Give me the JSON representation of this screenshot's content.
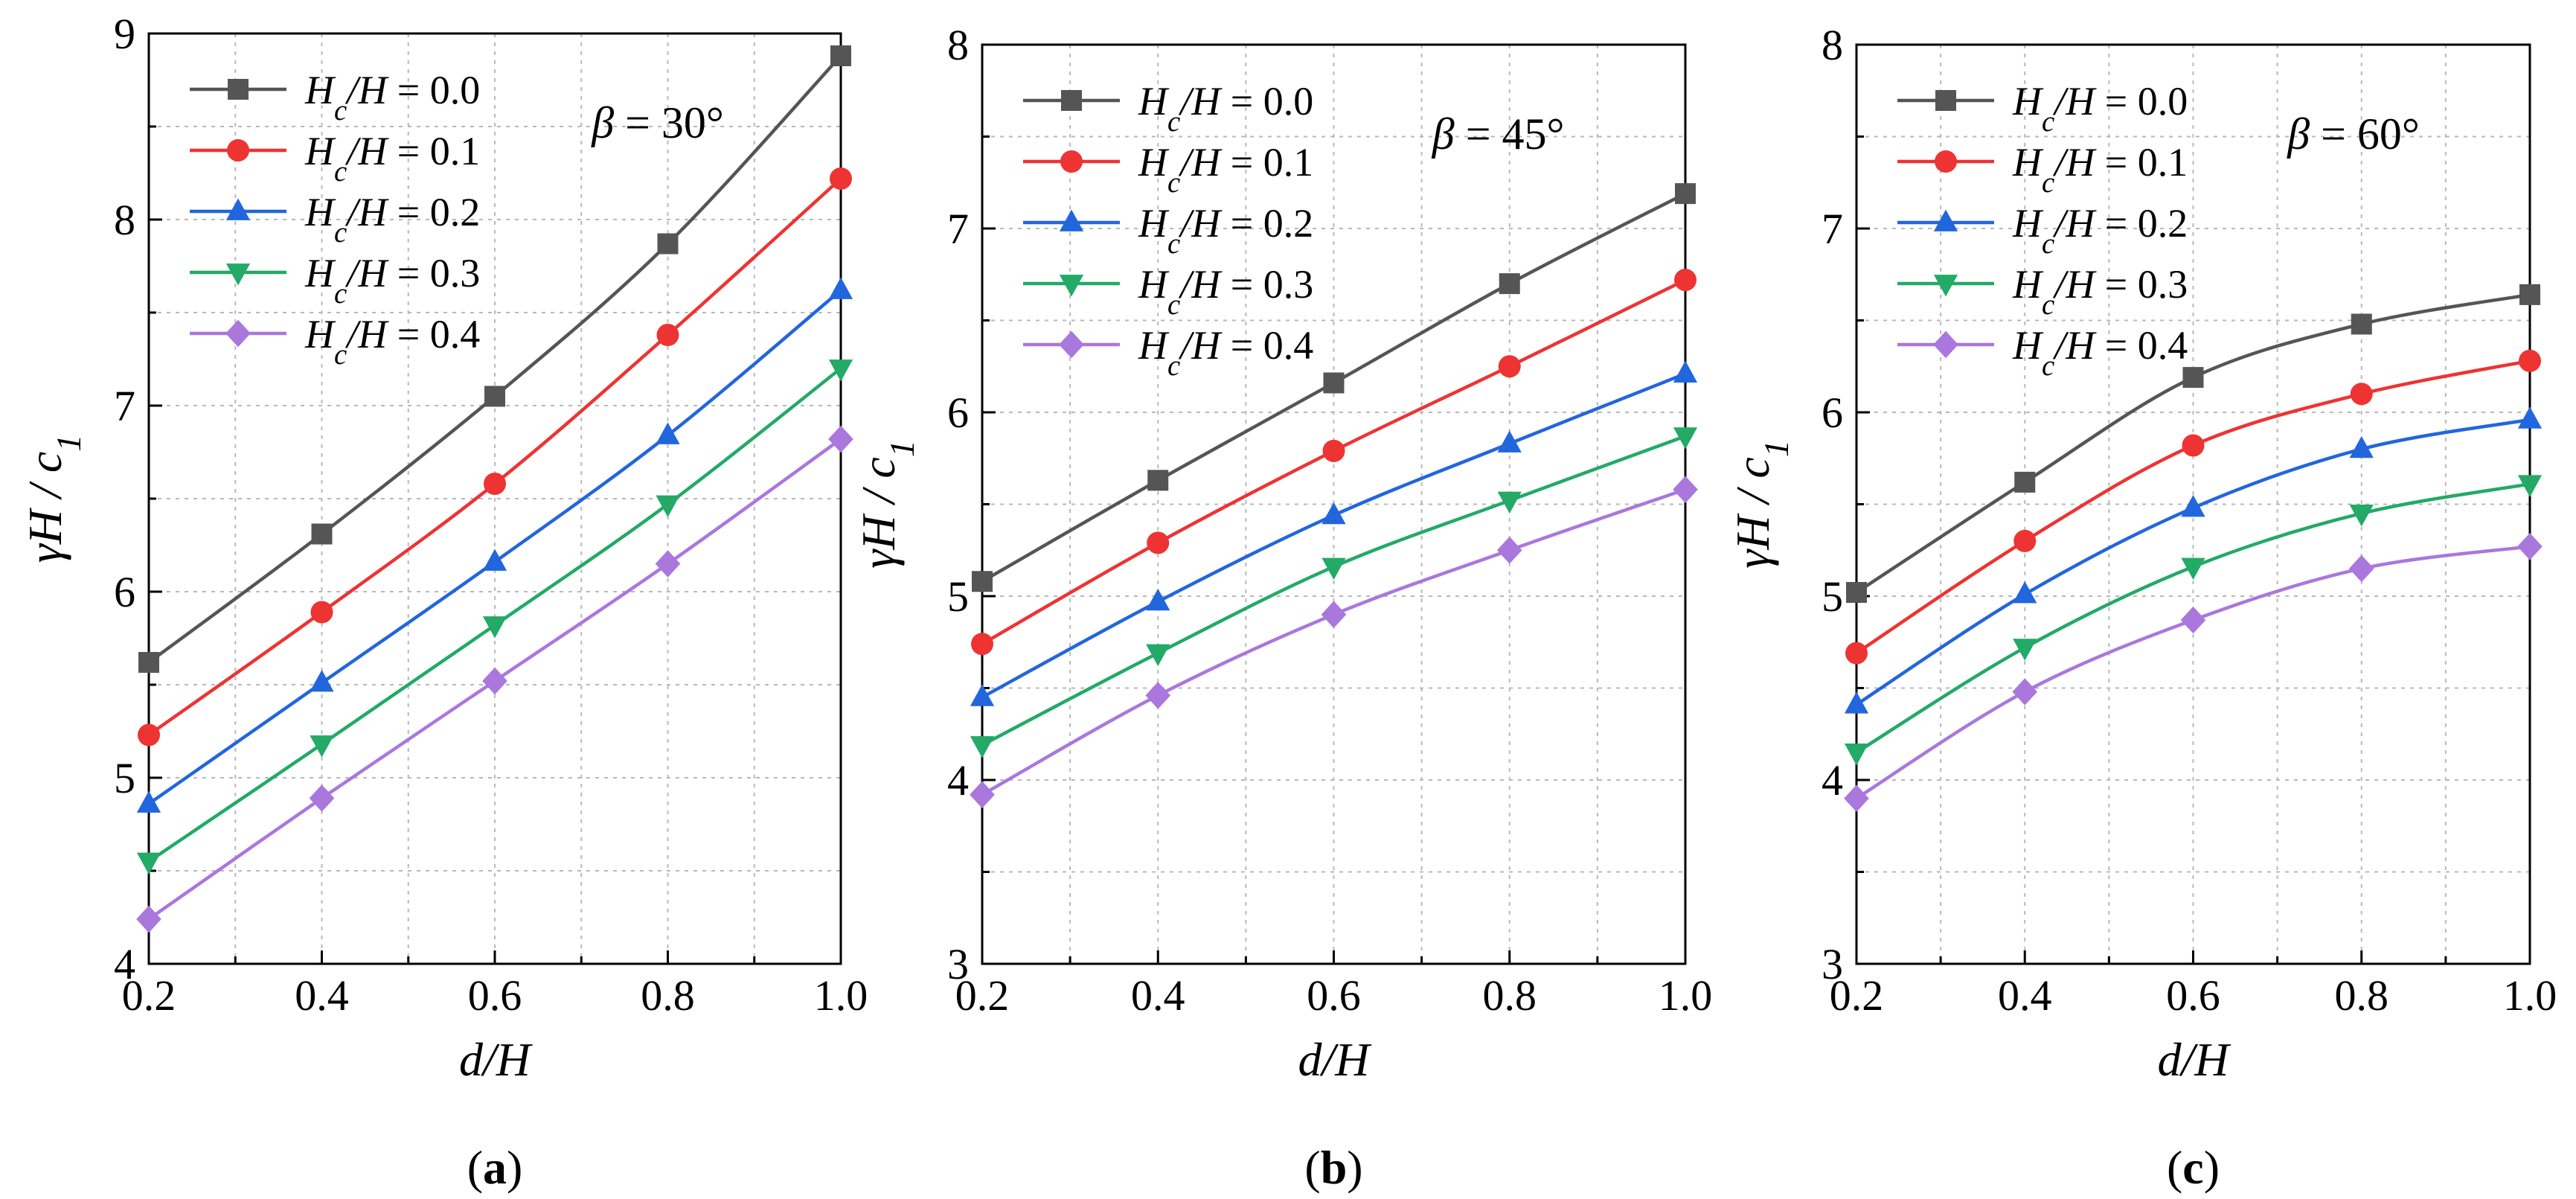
{
  "chart_data": [
    {
      "type": "line",
      "panel_label": "(a)",
      "panel_letter": "a",
      "annotation": "β = 30°",
      "xlabel": "d/H",
      "ylabel": "γH / c1",
      "xlim": [
        0.2,
        1.0
      ],
      "ylim": [
        4,
        9
      ],
      "x": [
        0.2,
        0.4,
        0.6,
        0.8,
        1.0
      ],
      "xticks": [
        0.2,
        0.4,
        0.6,
        0.8,
        1.0
      ],
      "xtick_labels": [
        "0.2",
        "0.4",
        "0.6",
        "0.8",
        "1.0"
      ],
      "yticks": [
        4,
        5,
        6,
        7,
        8,
        9
      ],
      "ytick_labels": [
        "4",
        "5",
        "6",
        "7",
        "8",
        "9"
      ],
      "grid": true,
      "legend_position": "top-left",
      "series": [
        {
          "name": "Hc/H = 0.0",
          "values": [
            5.62,
            6.31,
            7.05,
            7.87,
            8.88
          ]
        },
        {
          "name": "Hc/H = 0.1",
          "values": [
            5.23,
            5.89,
            6.58,
            7.38,
            8.22
          ]
        },
        {
          "name": "Hc/H = 0.2",
          "values": [
            4.86,
            5.51,
            6.16,
            6.84,
            7.62
          ]
        },
        {
          "name": "Hc/H = 0.3",
          "values": [
            4.55,
            5.18,
            5.82,
            6.47,
            7.2
          ]
        },
        {
          "name": "Hc/H = 0.4",
          "values": [
            4.24,
            4.89,
            5.52,
            6.15,
            6.82
          ]
        }
      ]
    },
    {
      "type": "line",
      "panel_label": "(b)",
      "panel_letter": "b",
      "annotation": "β = 45°",
      "xlabel": "d/H",
      "ylabel": "γH / c1",
      "xlim": [
        0.2,
        1.0
      ],
      "ylim": [
        3,
        8
      ],
      "x": [
        0.2,
        0.4,
        0.6,
        0.8,
        1.0
      ],
      "xticks": [
        0.2,
        0.4,
        0.6,
        0.8,
        1.0
      ],
      "xtick_labels": [
        "0.2",
        "0.4",
        "0.6",
        "0.8",
        "1.0"
      ],
      "yticks": [
        3,
        4,
        5,
        6,
        7,
        8
      ],
      "ytick_labels": [
        "3",
        "4",
        "5",
        "6",
        "7",
        "8"
      ],
      "grid": true,
      "legend_position": "top-left",
      "series": [
        {
          "name": "Hc/H = 0.0",
          "values": [
            5.08,
            5.63,
            6.16,
            6.7,
            7.19
          ]
        },
        {
          "name": "Hc/H = 0.1",
          "values": [
            4.74,
            5.29,
            5.79,
            6.25,
            6.72
          ]
        },
        {
          "name": "Hc/H = 0.2",
          "values": [
            4.45,
            4.97,
            5.44,
            5.83,
            6.21
          ]
        },
        {
          "name": "Hc/H = 0.3",
          "values": [
            4.19,
            4.69,
            5.16,
            5.52,
            5.87
          ]
        },
        {
          "name": "Hc/H = 0.4",
          "values": [
            3.92,
            4.46,
            4.9,
            5.25,
            5.58
          ]
        }
      ]
    },
    {
      "type": "line",
      "panel_label": "(c)",
      "panel_letter": "c",
      "annotation": "β = 60°",
      "xlabel": "d/H",
      "ylabel": "γH / c1",
      "xlim": [
        0.2,
        1.0
      ],
      "ylim": [
        3,
        8
      ],
      "x": [
        0.2,
        0.4,
        0.6,
        0.8,
        1.0
      ],
      "xticks": [
        0.2,
        0.4,
        0.6,
        0.8,
        1.0
      ],
      "xtick_labels": [
        "0.2",
        "0.4",
        "0.6",
        "0.8",
        "1.0"
      ],
      "yticks": [
        3,
        4,
        5,
        6,
        7,
        8
      ],
      "ytick_labels": [
        "3",
        "4",
        "5",
        "6",
        "7",
        "8"
      ],
      "grid": true,
      "legend_position": "top-left",
      "series": [
        {
          "name": "Hc/H = 0.0",
          "values": [
            5.02,
            5.62,
            6.19,
            6.48,
            6.64
          ]
        },
        {
          "name": "Hc/H = 0.1",
          "values": [
            4.69,
            5.3,
            5.82,
            6.1,
            6.28
          ]
        },
        {
          "name": "Hc/H = 0.2",
          "values": [
            4.41,
            5.01,
            5.48,
            5.8,
            5.96
          ]
        },
        {
          "name": "Hc/H = 0.3",
          "values": [
            4.15,
            4.72,
            5.16,
            5.45,
            5.61
          ]
        },
        {
          "name": "Hc/H = 0.4",
          "values": [
            3.9,
            4.48,
            4.87,
            5.15,
            5.27
          ]
        }
      ]
    }
  ],
  "series_style": [
    {
      "color": "#555555",
      "marker": "square"
    },
    {
      "color": "#ee3333",
      "marker": "circle"
    },
    {
      "color": "#2266dd",
      "marker": "triangle-up"
    },
    {
      "color": "#22aa66",
      "marker": "triangle-down"
    },
    {
      "color": "#aa77dd",
      "marker": "diamond"
    }
  ],
  "legend_labels": [
    {
      "symbol": "H",
      "sub": "c",
      "rest": "/H = 0.0"
    },
    {
      "symbol": "H",
      "sub": "c",
      "rest": "/H = 0.1"
    },
    {
      "symbol": "H",
      "sub": "c",
      "rest": "/H = 0.2"
    },
    {
      "symbol": "H",
      "sub": "c",
      "rest": "/H = 0.3"
    },
    {
      "symbol": "H",
      "sub": "c",
      "rest": "/H = 0.4"
    }
  ],
  "ylabel_parts": {
    "main": "γH / c",
    "sub": "1"
  },
  "xlabel_parts": {
    "main": "d/H"
  },
  "annotation_parts": [
    {
      "symbol": "β",
      "rest": " = 30°"
    },
    {
      "symbol": "β",
      "rest": " = 45°"
    },
    {
      "symbol": "β",
      "rest": " = 60°"
    }
  ]
}
